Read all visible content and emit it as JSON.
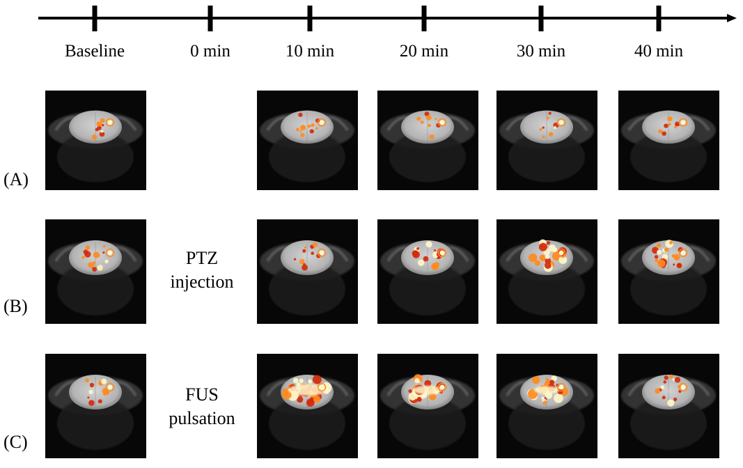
{
  "timeline": {
    "ticks": [
      "Baseline",
      "0 min",
      "10 min",
      "20 min",
      "30 min",
      "40 min"
    ]
  },
  "rows": [
    {
      "label": "(A)",
      "annotation": [],
      "scans": [
        {
          "time": "Baseline",
          "activation": 0.1
        },
        {
          "time": "10 min",
          "activation": 0.15
        },
        {
          "time": "20 min",
          "activation": 0.1
        },
        {
          "time": "30 min",
          "activation": 0.1
        },
        {
          "time": "40 min",
          "activation": 0.1
        }
      ]
    },
    {
      "label": "(B)",
      "annotation": [
        "PTZ",
        "injection"
      ],
      "scans": [
        {
          "time": "Baseline",
          "activation": 0.3
        },
        {
          "time": "10 min",
          "activation": 0.25
        },
        {
          "time": "20 min",
          "activation": 0.35
        },
        {
          "time": "30 min",
          "activation": 0.55
        },
        {
          "time": "40 min",
          "activation": 0.45
        }
      ]
    },
    {
      "label": "(C)",
      "annotation": [
        "FUS",
        "pulsation"
      ],
      "scans": [
        {
          "time": "Baseline",
          "activation": 0.2
        },
        {
          "time": "10 min",
          "activation": 0.9
        },
        {
          "time": "20 min",
          "activation": 0.7
        },
        {
          "time": "30 min",
          "activation": 0.6
        },
        {
          "time": "40 min",
          "activation": 0.3
        }
      ]
    }
  ],
  "colors": {
    "background": "#ffffff",
    "line": "#000000",
    "scan_background": "#070707",
    "brain": "#b4b4b4",
    "activation_low": "#d42a0a",
    "activation_mid": "#ff8a1e",
    "activation_high": "#fff6c8"
  }
}
